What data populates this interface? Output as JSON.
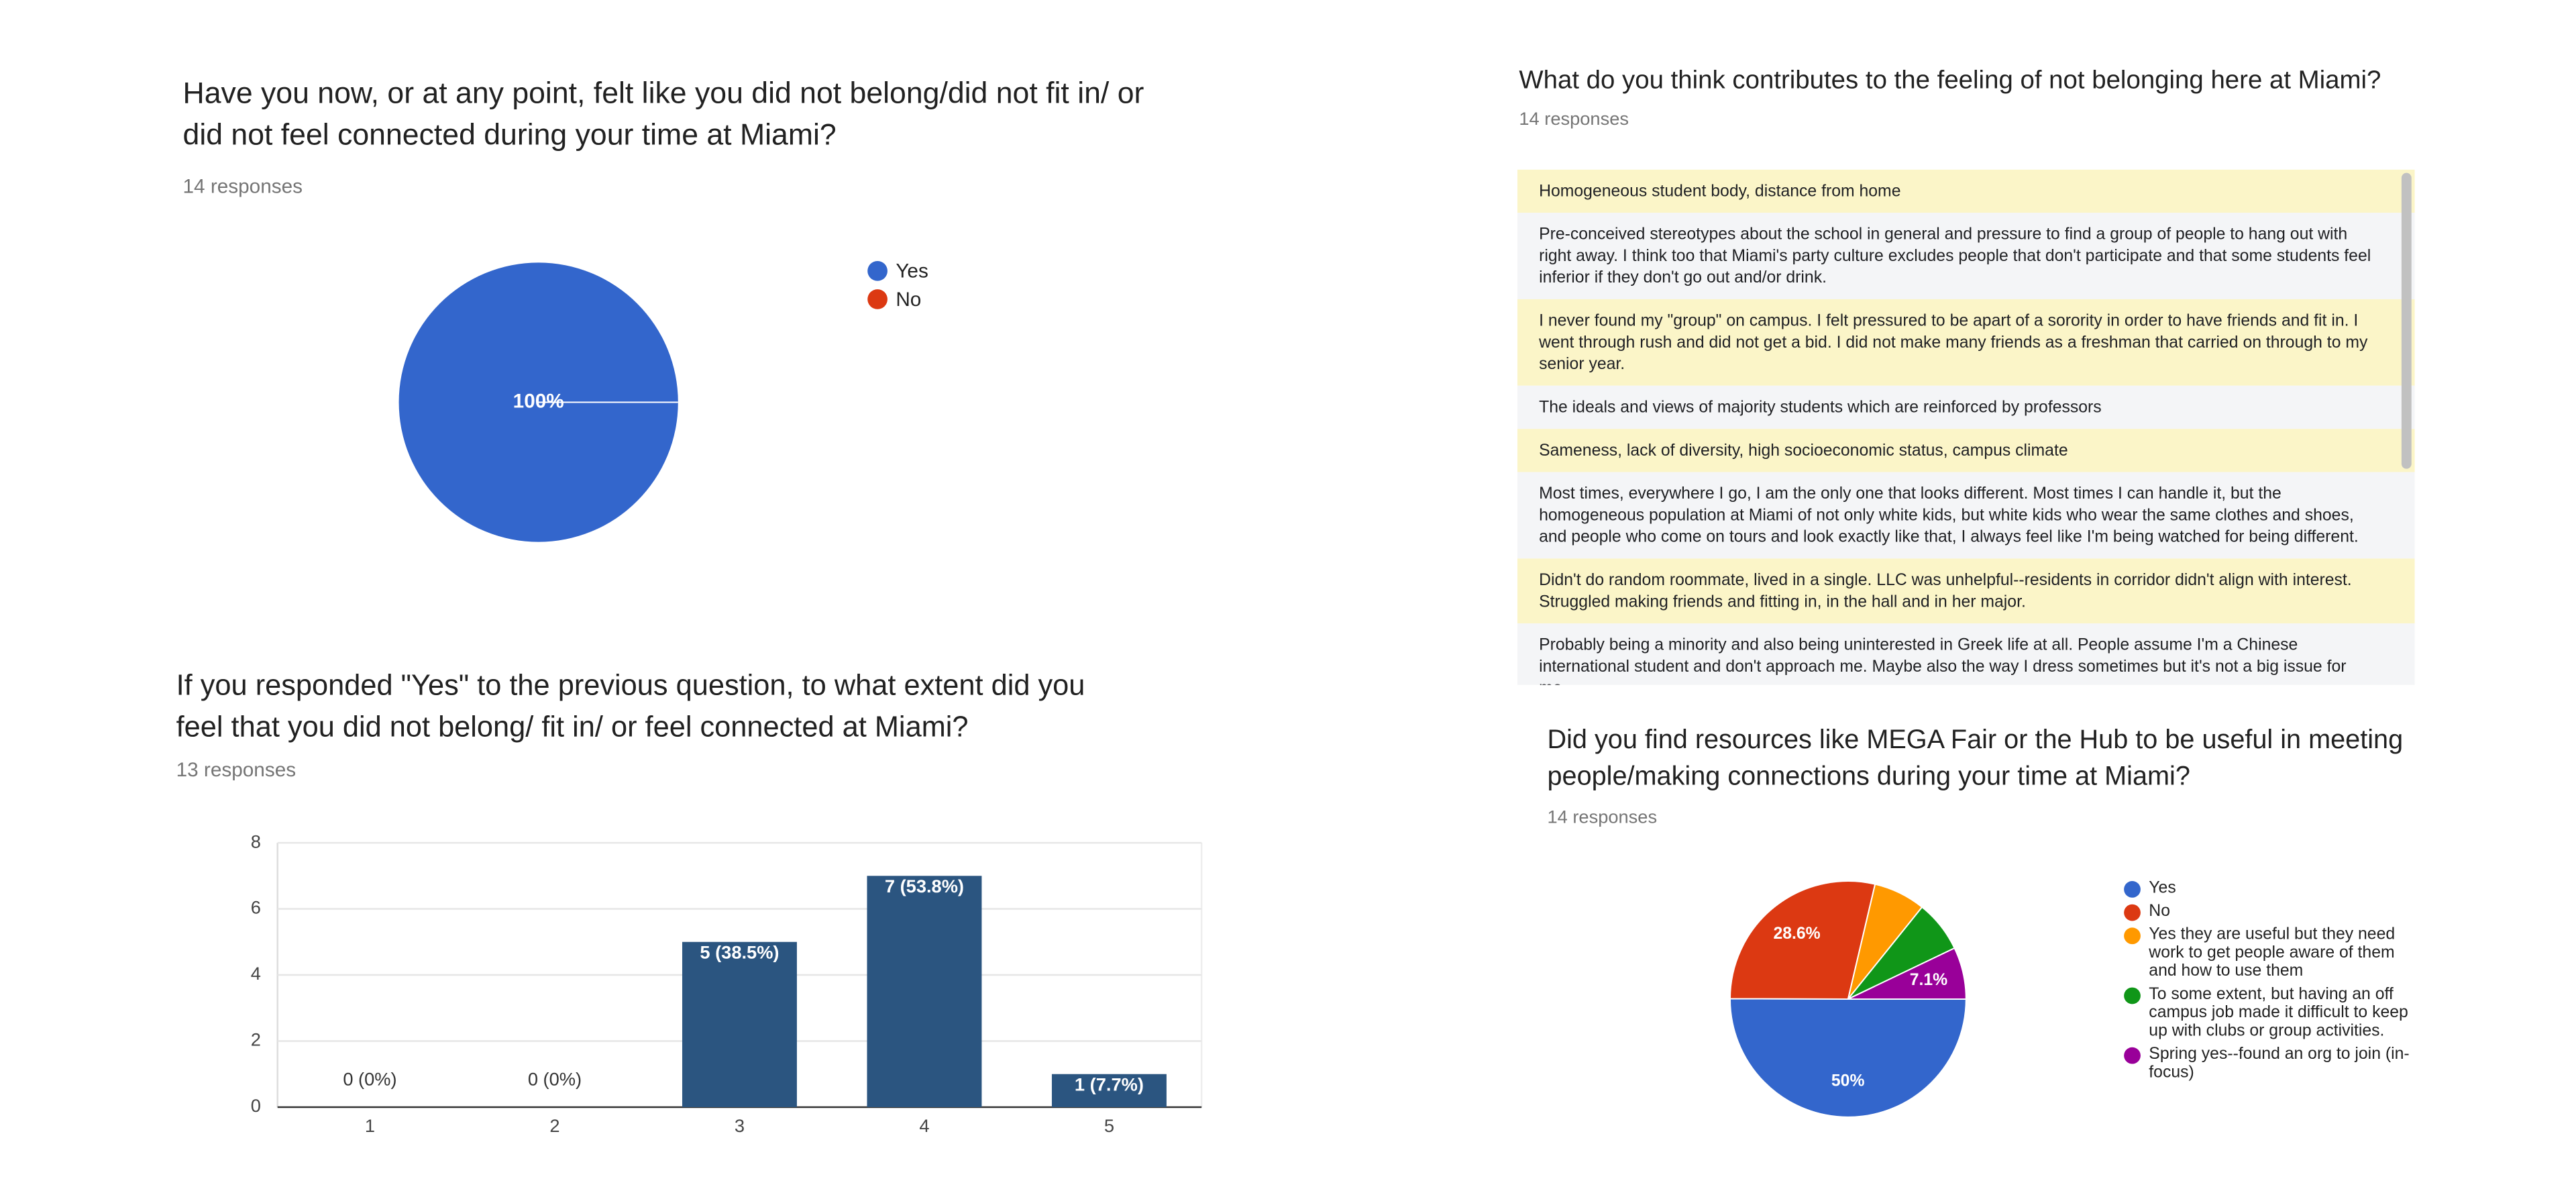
{
  "chart_data": [
    {
      "type": "pie",
      "title": "Have you now, or at any point, felt like you did not belong/did not fit in/ or did not feel connected during your time at Miami?",
      "subtitle": "14 responses",
      "categories": [
        "Yes",
        "No"
      ],
      "values": [
        100,
        0
      ],
      "value_labels": [
        "100%",
        null
      ],
      "colors": [
        "#3366cc",
        "#dc3912"
      ]
    },
    {
      "type": "bar",
      "title": "If you responded \"Yes\" to the previous question, to what extent did you feel that you did not belong/ fit in/ or feel connected at Miami?",
      "subtitle": "13 responses",
      "categories": [
        "1",
        "2",
        "3",
        "4",
        "5"
      ],
      "values": [
        0,
        0,
        5,
        7,
        1
      ],
      "value_labels": [
        "0 (0%)",
        "0 (0%)",
        "5 (38.5%)",
        "7 (53.8%)",
        "1 (7.7%)"
      ],
      "color": "#2b5580",
      "ylim": [
        0,
        8
      ],
      "yticks": [
        0,
        2,
        4,
        6,
        8
      ],
      "grid": true
    },
    {
      "type": "pie",
      "title": "Did you find resources like MEGA Fair or the Hub to be useful in meeting people/making connections during your time at Miami?",
      "subtitle": "14 responses",
      "categories": [
        "Yes",
        "No",
        "Yes they are useful but they need work to get people aware of them and how to use them",
        "To some extent, but having an off campus job made it difficult to keep up with clubs or group activities.",
        "Spring yes--found an org to join (in-focus)"
      ],
      "values": [
        50,
        28.6,
        7.1,
        7.1,
        7.1
      ],
      "value_labels": [
        "50%",
        "28.6%",
        null,
        null,
        "7.1%"
      ],
      "colors": [
        "#3366cc",
        "#dc3912",
        "#ff9900",
        "#109618",
        "#990099"
      ]
    }
  ],
  "text_responses": {
    "title": "What do you think contributes to the feeling of not belonging here at Miami?",
    "subtitle": "14 responses",
    "responses": [
      "Homogeneous student body, distance from home",
      "Pre-conceived stereotypes about the school in general and pressure to find a group of people to hang out with right away. I think too that Miami's party culture excludes people that don't participate and that some students feel inferior if they don't go out and/or drink.",
      "I never found my \"group\" on campus. I felt pressured to be apart of a sorority in order to have friends and fit in. I went through rush and did not get a bid. I did not make many friends as a freshman that carried on through to my senior year.",
      "The ideals and views of majority students which are reinforced by professors",
      "Sameness, lack of diversity, high socioeconomic status, campus climate",
      "Most times, everywhere I go, I am the only one that looks different. Most times I can handle it, but the homogeneous population at Miami of not only white kids, but white kids who wear the same clothes and shoes, and people who come on tours and look exactly like that, I always feel like I'm being watched for being different.",
      "Didn't do random roommate, lived in a single. LLC was unhelpful--residents in corridor didn't align with interest. Struggled making friends and fitting in, in the hall and in her major.",
      "Probably being a minority and also being uninterested in Greek life at all. People assume I'm a Chinese international student and don't approach me. Maybe also the way I dress sometimes but it's not a big issue for me."
    ]
  }
}
